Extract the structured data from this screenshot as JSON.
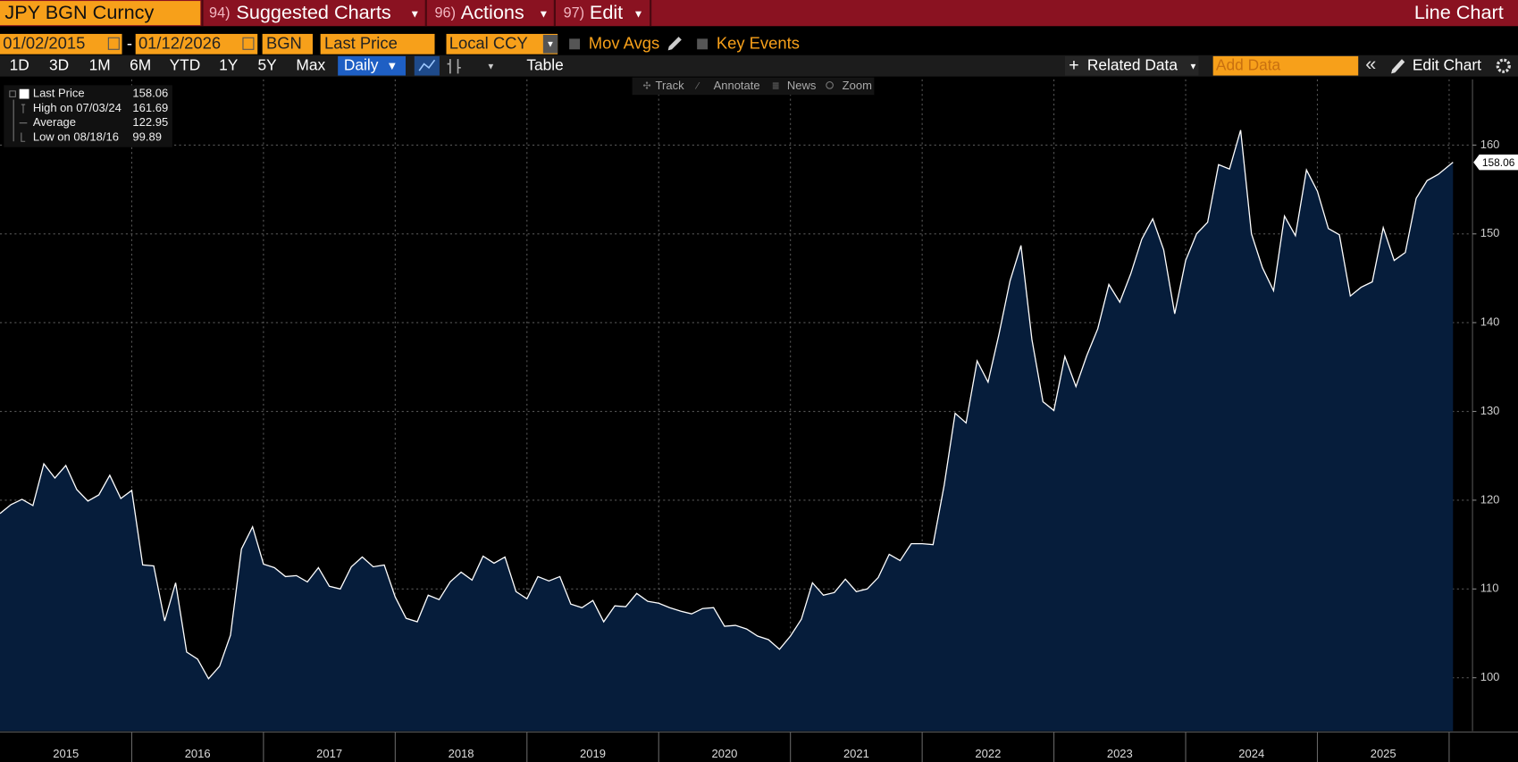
{
  "toolbar": {
    "security": "JPY BGN Curncy",
    "menus": [
      {
        "num": "94)",
        "label": "Suggested Charts"
      },
      {
        "num": "96)",
        "label": "Actions"
      },
      {
        "num": "97)",
        "label": "Edit"
      }
    ],
    "view": "Line Chart"
  },
  "controls": {
    "start": "01/02/2015",
    "sep": "-",
    "end": "01/12/2026",
    "source": "BGN",
    "field": "Last Price",
    "currency": "Local CCY",
    "mov_avgs": "Mov Avgs",
    "key_events": "Key Events"
  },
  "periods": [
    "1D",
    "3D",
    "1M",
    "6M",
    "YTD",
    "1Y",
    "5Y",
    "Max"
  ],
  "frequency": "Daily",
  "table": "Table",
  "related": "Related Data",
  "add_data": "Add Data",
  "edit_chart": "Edit Chart",
  "chart_tools": [
    "Track",
    "Annotate",
    "News",
    "Zoom"
  ],
  "legend": [
    {
      "label": "Last Price",
      "value": "158.06"
    },
    {
      "label": "High on 07/03/24",
      "value": "161.69"
    },
    {
      "label": "Average",
      "value": "122.95"
    },
    {
      "label": "Low on 08/18/16",
      "value": "99.89"
    }
  ],
  "chart_data": {
    "type": "line",
    "fill_area": true,
    "line_color": "#ffffff",
    "area_color": "#061d3b",
    "grid": true,
    "x": [
      2015,
      2015.083,
      2015.167,
      2015.25,
      2015.333,
      2015.417,
      2015.5,
      2015.583,
      2015.667,
      2015.75,
      2015.833,
      2015.917,
      2016,
      2016.083,
      2016.167,
      2016.25,
      2016.333,
      2016.417,
      2016.5,
      2016.583,
      2016.667,
      2016.75,
      2016.833,
      2016.917,
      2017,
      2017.083,
      2017.167,
      2017.25,
      2017.333,
      2017.417,
      2017.5,
      2017.583,
      2017.667,
      2017.75,
      2017.833,
      2017.917,
      2018,
      2018.083,
      2018.167,
      2018.25,
      2018.333,
      2018.417,
      2018.5,
      2018.583,
      2018.667,
      2018.75,
      2018.833,
      2018.917,
      2019,
      2019.083,
      2019.167,
      2019.25,
      2019.333,
      2019.417,
      2019.5,
      2019.583,
      2019.667,
      2019.75,
      2019.833,
      2019.917,
      2020,
      2020.083,
      2020.167,
      2020.25,
      2020.333,
      2020.417,
      2020.5,
      2020.583,
      2020.667,
      2020.75,
      2020.833,
      2020.917,
      2021,
      2021.083,
      2021.167,
      2021.25,
      2021.333,
      2021.417,
      2021.5,
      2021.583,
      2021.667,
      2021.75,
      2021.833,
      2021.917,
      2022,
      2022.083,
      2022.167,
      2022.25,
      2022.333,
      2022.417,
      2022.5,
      2022.583,
      2022.667,
      2022.75,
      2022.833,
      2022.917,
      2023,
      2023.083,
      2023.167,
      2023.25,
      2023.333,
      2023.417,
      2023.5,
      2023.583,
      2023.667,
      2023.75,
      2023.833,
      2023.917,
      2024,
      2024.083,
      2024.167,
      2024.25,
      2024.333,
      2024.417,
      2024.5,
      2024.583,
      2024.667,
      2024.75,
      2024.833,
      2024.917,
      2025,
      2025.083,
      2025.167,
      2025.25,
      2025.333,
      2025.417,
      2025.5,
      2025.583,
      2025.667,
      2025.75,
      2025.833,
      2025.917,
      2026.03
    ],
    "values": [
      118.5,
      119.5,
      120.1,
      119.4,
      124.1,
      122.5,
      123.9,
      121.2,
      119.9,
      120.6,
      122.8,
      120.2,
      121.1,
      112.7,
      112.6,
      106.4,
      110.7,
      102.9,
      102.1,
      99.89,
      101.3,
      104.8,
      114.5,
      117,
      112.8,
      112.4,
      111.4,
      111.5,
      110.8,
      112.4,
      110.3,
      110,
      112.5,
      113.6,
      112.5,
      112.7,
      109.1,
      106.7,
      106.3,
      109.3,
      108.8,
      110.8,
      111.9,
      111,
      113.7,
      112.9,
      113.6,
      109.7,
      108.9,
      111.4,
      110.9,
      111.4,
      108.3,
      107.9,
      108.7,
      106.3,
      108.1,
      108,
      109.5,
      108.6,
      108.4,
      107.9,
      107.5,
      107.2,
      107.8,
      107.9,
      105.8,
      105.9,
      105.5,
      104.7,
      104.3,
      103.2,
      104.7,
      106.6,
      110.7,
      109.3,
      109.6,
      111.1,
      109.7,
      110,
      111.3,
      113.9,
      113.2,
      115.1,
      115.1,
      115,
      121.7,
      129.8,
      128.7,
      135.7,
      133.3,
      138.7,
      144.7,
      148.7,
      138.1,
      131.1,
      130.1,
      136.2,
      132.8,
      136.3,
      139.3,
      144.3,
      142.3,
      145.5,
      149.4,
      151.7,
      148.2,
      141,
      147,
      150,
      151.3,
      157.8,
      157.3,
      161.69,
      150,
      146.2,
      143.6,
      152,
      149.8,
      157.2,
      154.8,
      150.6,
      149.9,
      143,
      144,
      144.6,
      150.7,
      147,
      147.9,
      154,
      156,
      156.7,
      158.06
    ],
    "xlim": [
      2015,
      2026.17
    ],
    "xticks": [
      {
        "value": 2015.5,
        "label": "2015"
      },
      {
        "value": 2016.5,
        "label": "2016"
      },
      {
        "value": 2017.5,
        "label": "2017"
      },
      {
        "value": 2018.5,
        "label": "2018"
      },
      {
        "value": 2019.5,
        "label": "2019"
      },
      {
        "value": 2020.5,
        "label": "2020"
      },
      {
        "value": 2021.5,
        "label": "2021"
      },
      {
        "value": 2022.5,
        "label": "2022"
      },
      {
        "value": 2023.5,
        "label": "2023"
      },
      {
        "value": 2024.5,
        "label": "2024"
      },
      {
        "value": 2025.5,
        "label": "2025"
      }
    ],
    "ylim": [
      94,
      167.4
    ],
    "yticks": [
      100,
      110,
      120,
      130,
      140,
      150,
      160
    ]
  }
}
